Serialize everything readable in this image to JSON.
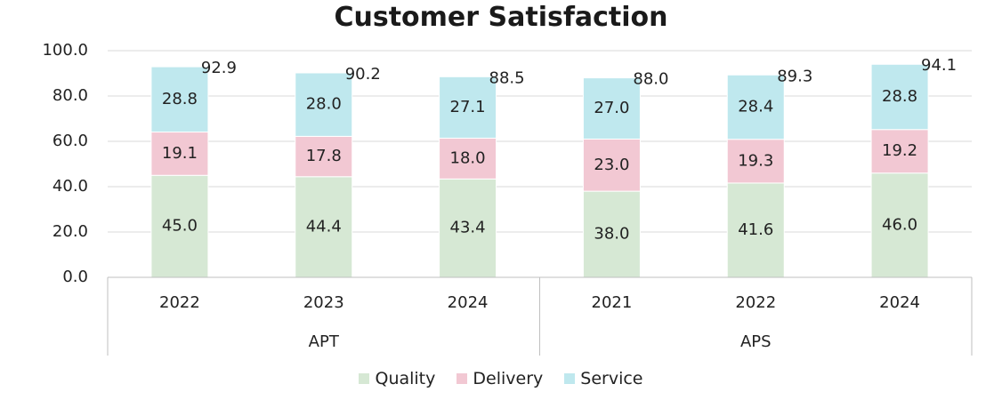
{
  "chart_data": {
    "type": "bar",
    "stacked": true,
    "title": "Customer Satisfaction",
    "groups": [
      {
        "name": "APT",
        "categories": [
          "2022",
          "2023",
          "2024"
        ]
      },
      {
        "name": "APS",
        "categories": [
          "2021",
          "2022",
          "2024"
        ]
      }
    ],
    "categories": [
      "2022",
      "2023",
      "2024",
      "2021",
      "2022",
      "2024"
    ],
    "series": [
      {
        "name": "Quality",
        "color": "#d6e8d4",
        "values": [
          45.0,
          44.4,
          43.4,
          38.0,
          41.6,
          46.0
        ]
      },
      {
        "name": "Delivery",
        "color": "#f2c8d3",
        "values": [
          19.1,
          17.8,
          18.0,
          23.0,
          19.3,
          19.2
        ]
      },
      {
        "name": "Service",
        "color": "#bfe8ee",
        "values": [
          28.8,
          28.0,
          27.1,
          27.0,
          28.4,
          28.8
        ]
      }
    ],
    "totals": [
      92.9,
      90.2,
      88.5,
      88.0,
      89.3,
      94.1
    ],
    "value_labels": {
      "Quality": [
        "45.0",
        "44.4",
        "43.4",
        "38.0",
        "41.6",
        "46.0"
      ],
      "Delivery": [
        "19.1",
        "17.8",
        "18.0",
        "23.0",
        "19.3",
        "19.2"
      ],
      "Service": [
        "28.8",
        "28.0",
        "27.1",
        "27.0",
        "28.4",
        "28.8"
      ],
      "Total": [
        "92.9",
        "90.2",
        "88.5",
        "88.0",
        "89.3",
        "94.1"
      ]
    },
    "ylim": [
      0,
      100
    ],
    "yticks": [
      "0.0",
      "20.0",
      "40.0",
      "60.0",
      "80.0",
      "100.0"
    ],
    "grid": true,
    "legend_position": "bottom"
  }
}
